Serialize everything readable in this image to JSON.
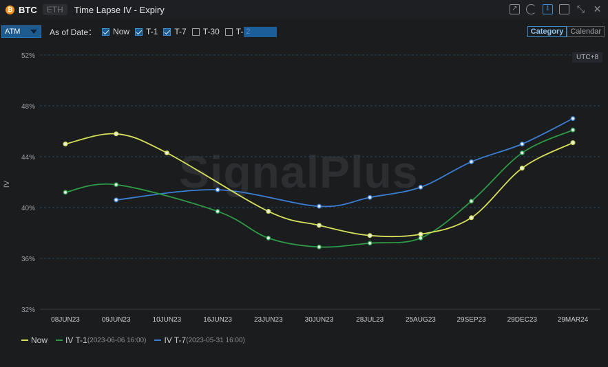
{
  "header": {
    "coin_glyph": "₿",
    "tab_active": "BTC",
    "tab_inactive": "ETH",
    "title": "Time Lapse IV - Expiry",
    "window_icons": [
      "share-icon",
      "refresh-icon",
      "layout-1-icon",
      "popout-icon",
      "collapse-icon",
      "close-icon"
    ],
    "layout_number": "1"
  },
  "toolbar": {
    "atm_label": "ATM",
    "as_of_label": "As of Date：",
    "checkboxes": [
      {
        "label": "Now",
        "checked": true
      },
      {
        "label": "T-1",
        "checked": true
      },
      {
        "label": "T-7",
        "checked": true
      },
      {
        "label": "T-30",
        "checked": false
      },
      {
        "label": "T-",
        "checked": false
      }
    ],
    "t_input_placeholder": "2",
    "view_modes": [
      "Category",
      "Calendar"
    ],
    "view_selected": "Category"
  },
  "chart": {
    "utc_badge": "UTC+8",
    "watermark": "SignalPlus"
  },
  "chart_data": {
    "type": "line",
    "title": "Time Lapse IV - Expiry",
    "xlabel": "",
    "ylabel": "IV",
    "ylim": [
      32,
      52
    ],
    "yticks": [
      "32%",
      "36%",
      "40%",
      "44%",
      "48%",
      "52%"
    ],
    "grid": true,
    "legend_position": "bottom-left",
    "categories": [
      "08JUN23",
      "09JUN23",
      "10JUN23",
      "16JUN23",
      "23JUN23",
      "30JUN23",
      "28JUL23",
      "25AUG23",
      "29SEP23",
      "29DEC23",
      "29MAR24"
    ],
    "series": [
      {
        "name": "Now",
        "date": "",
        "color": "#d6e05a",
        "values": [
          45.0,
          45.8,
          44.3,
          null,
          39.7,
          38.6,
          37.8,
          37.9,
          39.2,
          43.1,
          45.1
        ]
      },
      {
        "name": "IV T-1",
        "date": "(2023-06-06 16:00)",
        "color": "#2e9a45",
        "values": [
          41.2,
          41.8,
          null,
          39.7,
          37.6,
          36.9,
          37.2,
          37.6,
          40.5,
          44.3,
          46.1
        ]
      },
      {
        "name": "IV T-7",
        "date": "(2023-05-31 16:00)",
        "color": "#3b7fd4",
        "values": [
          null,
          40.6,
          null,
          41.4,
          null,
          40.1,
          40.8,
          41.6,
          43.6,
          45.0,
          47.0
        ]
      }
    ]
  }
}
